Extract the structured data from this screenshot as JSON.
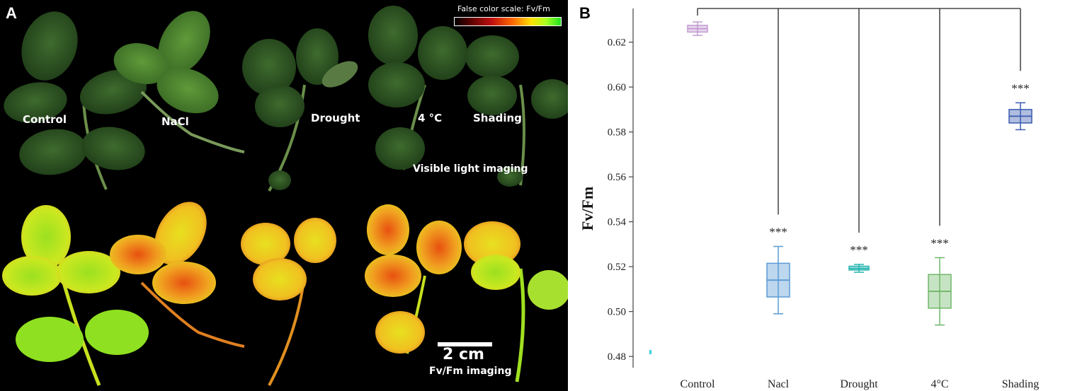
{
  "panel_a": {
    "letter": "A",
    "conditions": [
      "Control",
      "NaCl",
      "Drought",
      "4 °C",
      "Shading"
    ],
    "visible_label": "Visible light imaging",
    "fvfm_label": "Fv/Fm imaging",
    "scale_title": "False color scale:    Fv/Fm",
    "scalebar_label": "2 cm"
  },
  "panel_b": {
    "letter": "B"
  },
  "chart_data": {
    "type": "box",
    "ylabel": "Fv/Fm",
    "ylim": [
      0.475,
      0.635
    ],
    "yticks": [
      0.48,
      0.5,
      0.52,
      0.54,
      0.56,
      0.58,
      0.6,
      0.62
    ],
    "ytick_labels": [
      "0.48",
      "0.50",
      "0.52",
      "0.54",
      "0.56",
      "0.58",
      "0.60",
      "0.62"
    ],
    "categories": [
      "Control",
      "Nacl",
      "Drought",
      "4°C",
      "Shading"
    ],
    "boxes": [
      {
        "category": "Control",
        "whisker_low": 0.623,
        "q1": 0.6245,
        "median": 0.626,
        "q3": 0.6275,
        "whisker_high": 0.629,
        "color": "#c39bd3",
        "sig": ""
      },
      {
        "category": "Nacl",
        "whisker_low": 0.499,
        "q1": 0.5065,
        "median": 0.514,
        "q3": 0.5215,
        "whisker_high": 0.529,
        "color": "#5b9bd5",
        "sig": "***"
      },
      {
        "category": "Drought",
        "whisker_low": 0.5175,
        "q1": 0.5185,
        "median": 0.5192,
        "q3": 0.5202,
        "whisker_high": 0.521,
        "color": "#26b5b0",
        "sig": "***"
      },
      {
        "category": "4°C",
        "whisker_low": 0.494,
        "q1": 0.5015,
        "median": 0.509,
        "q3": 0.5165,
        "whisker_high": 0.524,
        "color": "#70b86a",
        "sig": "***"
      },
      {
        "category": "Shading",
        "whisker_low": 0.581,
        "q1": 0.584,
        "median": 0.587,
        "q3": 0.59,
        "whisker_high": 0.593,
        "color": "#3a5bb0",
        "sig": "***"
      }
    ],
    "significance": "***"
  }
}
